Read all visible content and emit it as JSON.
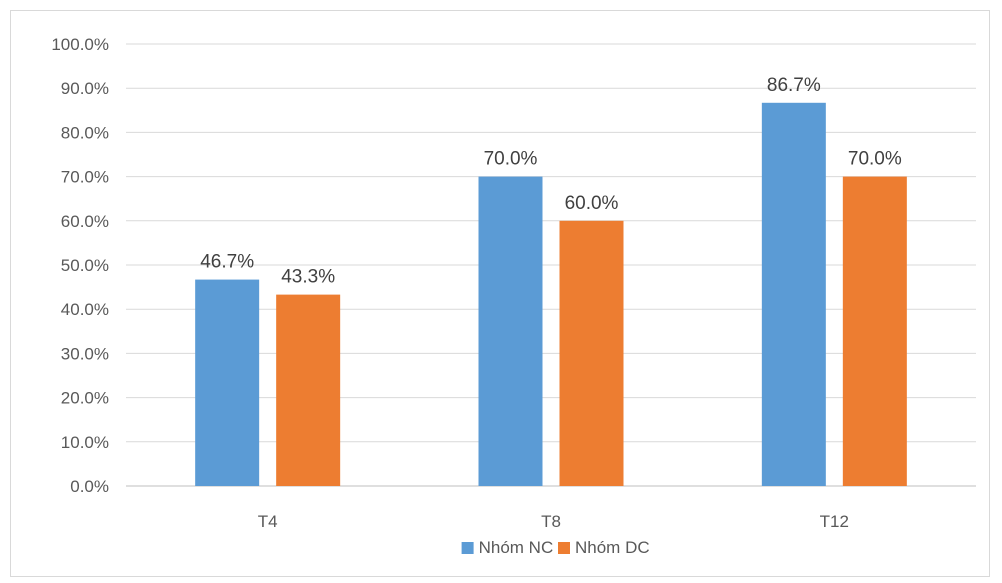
{
  "chart_data": {
    "type": "bar",
    "categories": [
      "T4",
      "T8",
      "T12"
    ],
    "series": [
      {
        "name": "Nhóm NC",
        "values": [
          46.7,
          70.0,
          86.7
        ],
        "color": "#5b9bd5"
      },
      {
        "name": "Nhóm DC",
        "values": [
          43.3,
          60.0,
          70.0
        ],
        "color": "#ed7d31"
      }
    ],
    "data_labels": [
      [
        "46.7%",
        "70.0%",
        "86.7%"
      ],
      [
        "43.3%",
        "60.0%",
        "70.0%"
      ]
    ],
    "y_ticks": [
      "0.0%",
      "10.0%",
      "20.0%",
      "30.0%",
      "40.0%",
      "50.0%",
      "60.0%",
      "70.0%",
      "80.0%",
      "90.0%",
      "100.0%"
    ],
    "ylim": [
      0,
      100
    ],
    "grid": true,
    "legend_position": "bottom",
    "gridline_color": "#d9d9d9",
    "axis_color": "#bfbfbf"
  }
}
